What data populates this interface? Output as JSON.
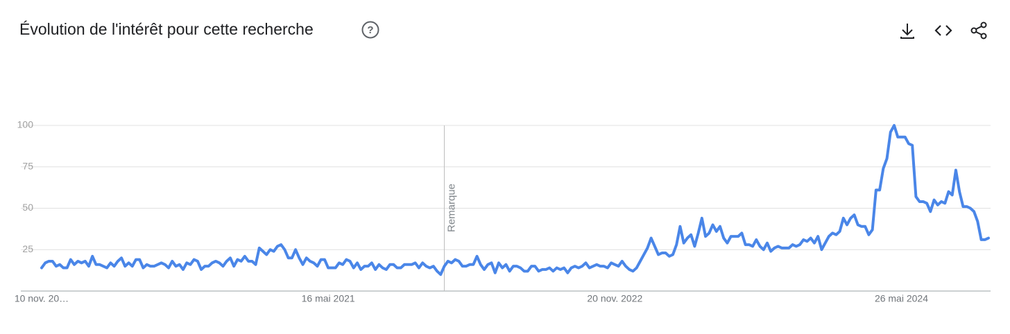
{
  "chart_data": {
    "type": "line",
    "title": "Évolution de l'intérêt pour cette recherche",
    "categories": [
      "10 nov. 20…",
      null,
      null,
      null,
      null,
      null,
      null,
      null,
      null,
      null,
      null,
      null,
      null,
      null,
      null,
      null,
      null,
      null,
      null,
      null,
      null,
      null,
      null,
      null,
      null,
      null,
      null,
      null,
      null,
      null,
      null,
      null,
      null,
      null,
      null,
      null,
      null,
      null,
      null,
      null,
      null,
      null,
      null,
      null,
      null,
      null,
      null,
      null,
      null,
      null,
      null,
      null,
      null,
      null,
      null,
      null,
      null,
      null,
      null,
      null,
      null,
      null,
      null,
      null,
      null,
      null,
      null,
      null,
      null,
      null,
      null,
      null,
      null,
      null,
      null,
      null,
      null,
      null,
      null,
      "16 mai 2021",
      null,
      null,
      null,
      null,
      null,
      null,
      null,
      null,
      null,
      null,
      null,
      null,
      null,
      null,
      null,
      null,
      null,
      null,
      null,
      null,
      null,
      null,
      null,
      null,
      null,
      null,
      null,
      null,
      null,
      null,
      null,
      null,
      null,
      null,
      null,
      null,
      null,
      null,
      null,
      null,
      null,
      null,
      null,
      null,
      null,
      null,
      null,
      null,
      null,
      null,
      null,
      null,
      null,
      null,
      null,
      null,
      null,
      null,
      null,
      null,
      null,
      null,
      null,
      null,
      null,
      null,
      null,
      null,
      null,
      null,
      null,
      null,
      null,
      null,
      null,
      null,
      null,
      null,
      "20 nov. 2022",
      null,
      null,
      null,
      null,
      null,
      null,
      null,
      null,
      null,
      null,
      null,
      null,
      null,
      null,
      null,
      null,
      null,
      null,
      null,
      null,
      null,
      null,
      null,
      null,
      null,
      null,
      null,
      null,
      null,
      null,
      null,
      null,
      null,
      null,
      null,
      null,
      null,
      null,
      null,
      null,
      null,
      null,
      null,
      null,
      null,
      null,
      null,
      null,
      null,
      null,
      null,
      null,
      null,
      null,
      null,
      null,
      null,
      null,
      null,
      null,
      null,
      null,
      null,
      null,
      null,
      null,
      null,
      null,
      null,
      null,
      null,
      null,
      null,
      null,
      null,
      null,
      null,
      null,
      "26 mai 2024",
      null,
      null,
      null,
      null,
      null,
      null,
      null,
      null,
      null,
      null,
      null,
      null,
      null,
      null,
      null,
      null,
      null,
      null,
      null,
      null,
      null,
      null,
      null,
      null
    ],
    "values": [
      14,
      17,
      18,
      18,
      15,
      16,
      14,
      14,
      19,
      16,
      18,
      17,
      18,
      15,
      21,
      16,
      16,
      15,
      14,
      17,
      15,
      18,
      20,
      15,
      17,
      15,
      19,
      19,
      14,
      16,
      15,
      15,
      16,
      17,
      16,
      14,
      18,
      15,
      16,
      13,
      17,
      16,
      19,
      18,
      13,
      15,
      15,
      17,
      18,
      17,
      15,
      18,
      20,
      15,
      19,
      18,
      21,
      18,
      18,
      16,
      26,
      24,
      22,
      25,
      24,
      27,
      28,
      25,
      20,
      20,
      25,
      20,
      16,
      20,
      18,
      17,
      15,
      19,
      19,
      14,
      14,
      14,
      17,
      16,
      19,
      18,
      14,
      17,
      13,
      15,
      15,
      17,
      13,
      16,
      14,
      13,
      16,
      16,
      14,
      14,
      16,
      16,
      16,
      17,
      14,
      17,
      15,
      14,
      15,
      12,
      10,
      15,
      18,
      17,
      19,
      18,
      15,
      15,
      16,
      16,
      21,
      16,
      13,
      16,
      17,
      11,
      17,
      14,
      16,
      12,
      15,
      15,
      14,
      12,
      12,
      15,
      15,
      12,
      13,
      13,
      14,
      12,
      14,
      13,
      14,
      11,
      14,
      15,
      14,
      15,
      17,
      14,
      15,
      16,
      15,
      15,
      14,
      17,
      16,
      15,
      18,
      15,
      13,
      12,
      14,
      18,
      22,
      26,
      32,
      27,
      22,
      23,
      23,
      21,
      22,
      28,
      39,
      29,
      32,
      34,
      27,
      35,
      44,
      33,
      35,
      40,
      36,
      39,
      32,
      29,
      33,
      33,
      33,
      35,
      28,
      28,
      27,
      31,
      27,
      25,
      29,
      24,
      26,
      27,
      26,
      26,
      26,
      28,
      27,
      28,
      31,
      30,
      32,
      29,
      33,
      25,
      29,
      33,
      35,
      34,
      36,
      44,
      40,
      44,
      46,
      40,
      39,
      39,
      34,
      37,
      61,
      61,
      74,
      80,
      96,
      100,
      93,
      93,
      93,
      89,
      88,
      57,
      54,
      54,
      53,
      48,
      55,
      52,
      54,
      53,
      60,
      58,
      73,
      60,
      51,
      51,
      50,
      48,
      42,
      31,
      31,
      32
    ],
    "color": "#4a86e8",
    "ylim": [
      0,
      100
    ],
    "yticks": [
      25,
      50,
      75,
      100
    ],
    "grid": true,
    "annotations": [
      {
        "label": "Remarque",
        "category_index": 111
      }
    ]
  }
}
